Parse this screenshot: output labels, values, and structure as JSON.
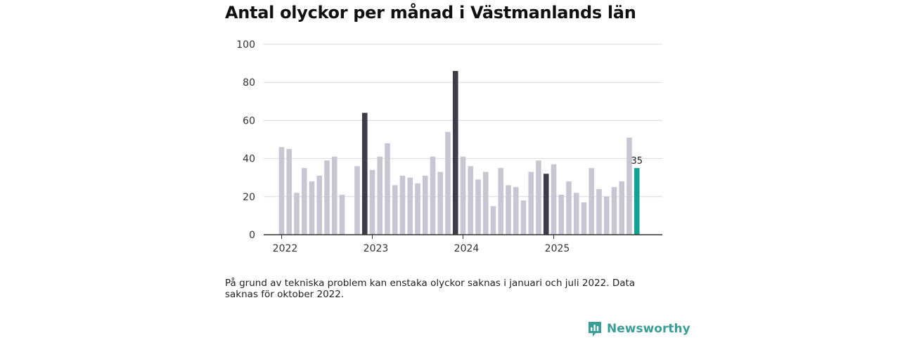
{
  "title": "Antal olyckor per månad i Västmanlands län",
  "footnote": "På grund av tekniska problem kan enstaka olyckor saknas i januari och juli 2022. Data saknas för oktober 2022.",
  "brand": {
    "name": "Newsworthy",
    "icon": "newsworthy-logo-icon"
  },
  "colors": {
    "default": "#c8c6d3",
    "december": "#3d3c48",
    "latest": "#13a192",
    "axis": "#333333",
    "grid": "#d9d9d9"
  },
  "chart_data": {
    "type": "bar",
    "title": "Antal olyckor per månad i Västmanlands län",
    "xlabel": "",
    "ylabel": "",
    "ylim": [
      0,
      100
    ],
    "yticks": [
      0,
      20,
      40,
      60,
      80,
      100
    ],
    "xtick_labels": [
      {
        "label": "2022",
        "index": 0
      },
      {
        "label": "2023",
        "index": 12
      },
      {
        "label": "2024",
        "index": 24
      },
      {
        "label": "2025",
        "index": 36
      }
    ],
    "categories": [
      "2022-01",
      "2022-02",
      "2022-03",
      "2022-04",
      "2022-05",
      "2022-06",
      "2022-07",
      "2022-08",
      "2022-09",
      "2022-10",
      "2022-11",
      "2022-12",
      "2023-01",
      "2023-02",
      "2023-03",
      "2023-04",
      "2023-05",
      "2023-06",
      "2023-07",
      "2023-08",
      "2023-09",
      "2023-10",
      "2023-11",
      "2023-12",
      "2024-01",
      "2024-02",
      "2024-03",
      "2024-04",
      "2024-05",
      "2024-06",
      "2024-07",
      "2024-08",
      "2024-09",
      "2024-10",
      "2024-11",
      "2024-12",
      "2025-01",
      "2025-02",
      "2025-03",
      "2025-04",
      "2025-05",
      "2025-06",
      "2025-07",
      "2025-08",
      "2025-09",
      "2025-10",
      "2025-11",
      "2025-12"
    ],
    "values": [
      46,
      45,
      22,
      35,
      28,
      31,
      39,
      41,
      21,
      null,
      36,
      64,
      34,
      41,
      48,
      26,
      31,
      30,
      27,
      31,
      41,
      33,
      54,
      86,
      41,
      36,
      29,
      33,
      15,
      35,
      26,
      25,
      18,
      33,
      39,
      32,
      37,
      21,
      28,
      22,
      17,
      35,
      24,
      20,
      25,
      28,
      51,
      35
    ],
    "highlight_december": [
      11,
      23,
      35
    ],
    "latest_index": 47,
    "latest_label": "35"
  }
}
